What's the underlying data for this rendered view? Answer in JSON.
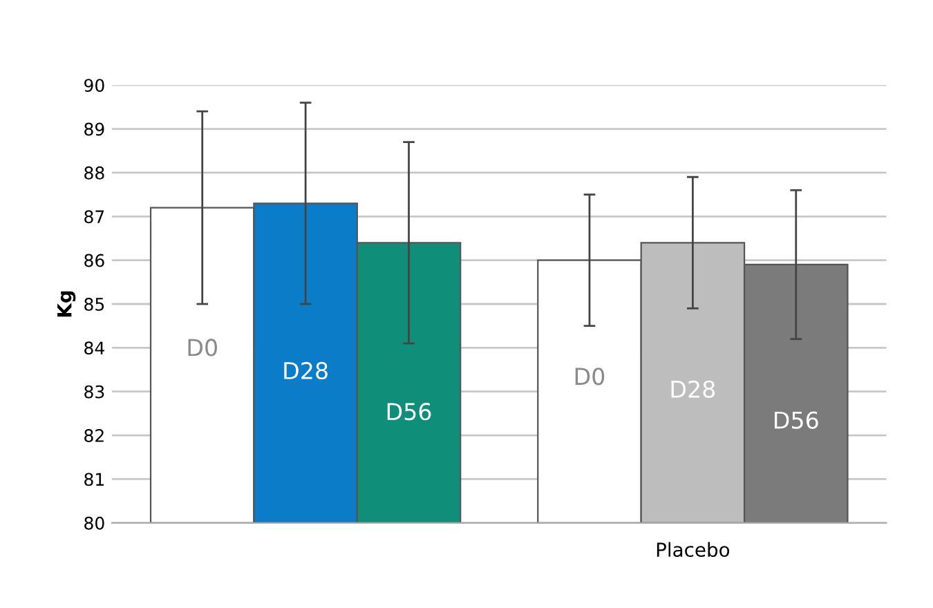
{
  "chart_data": {
    "type": "bar",
    "ylabel": "Kg",
    "categories": [
      null,
      "Placebo"
    ],
    "series": [
      {
        "name": "D0",
        "colors": [
          "#ffffff",
          "#ffffff"
        ],
        "values": [
          87.2,
          86.0
        ],
        "errors": [
          2.2,
          1.5
        ]
      },
      {
        "name": "D28",
        "colors": [
          "#0a7cc8",
          "#bdbdbd"
        ],
        "values": [
          87.3,
          86.4
        ],
        "errors": [
          2.3,
          1.5
        ]
      },
      {
        "name": "D56",
        "colors": [
          "#0f8f7a",
          "#7b7b7b"
        ],
        "values": [
          86.4,
          85.9
        ],
        "errors": [
          2.3,
          1.7
        ]
      }
    ],
    "ylim": [
      80,
      90
    ],
    "yticks": [
      80,
      81,
      82,
      83,
      84,
      85,
      86,
      87,
      88,
      89,
      90
    ],
    "grid": "y",
    "legend": false
  }
}
